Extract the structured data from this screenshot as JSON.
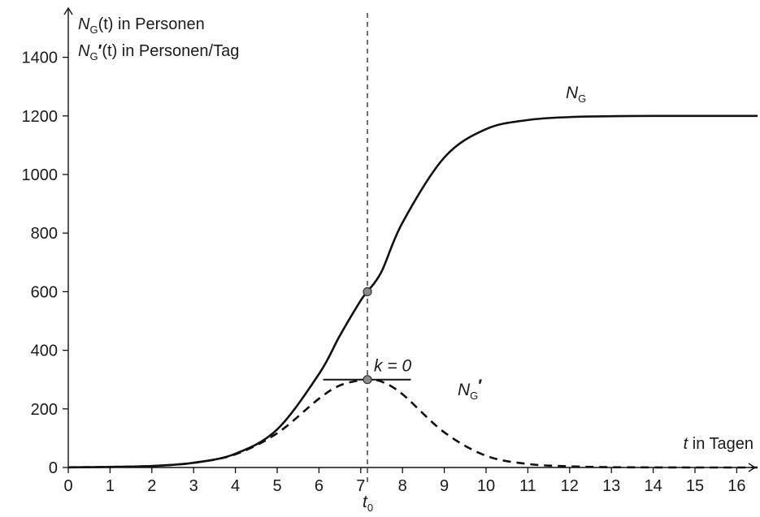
{
  "chart_data": {
    "type": "line",
    "x_ticks": [
      0,
      1,
      2,
      3,
      4,
      5,
      6,
      7,
      8,
      9,
      10,
      11,
      12,
      13,
      14,
      15,
      16
    ],
    "y_ticks": [
      0,
      200,
      400,
      600,
      800,
      1000,
      1200,
      1400
    ],
    "y_tick_labels": [
      "0",
      "200",
      "400",
      "600",
      "800",
      "1000",
      "1200",
      "1400"
    ],
    "xlim": [
      0,
      16.5
    ],
    "ylim": [
      0,
      1400
    ],
    "ylabel_line1": {
      "base": "N",
      "sub": "G",
      "rest": "(t) in Personen"
    },
    "ylabel_line2": {
      "base": "N",
      "sub": "G",
      "prime": "′",
      "rest": "(t) in Personen/Tag"
    },
    "xlabel": {
      "var": "t",
      "rest": " in Tagen"
    },
    "grid": false,
    "series": [
      {
        "label": {
          "base": "N",
          "sub": "G"
        },
        "style": "solid",
        "x": [
          0,
          1,
          2,
          3,
          4,
          5,
          6,
          6.5,
          7,
          7.16,
          7.5,
          8,
          9,
          10,
          11,
          12,
          13,
          14,
          15,
          16,
          16.5
        ],
        "y": [
          0.5,
          2,
          5,
          16,
          47,
          130,
          319,
          450,
          570,
          600,
          669,
          836,
          1058,
          1155,
          1186,
          1196,
          1199,
          1200,
          1200,
          1200,
          1200
        ]
      },
      {
        "label": {
          "base": "N",
          "sub": "G",
          "prime": "′"
        },
        "style": "dashed",
        "x": [
          0,
          1,
          2,
          3,
          4,
          5,
          6,
          6.5,
          7,
          7.16,
          7.5,
          8,
          9,
          10,
          11,
          12,
          13,
          14,
          15,
          16,
          16.5
        ],
        "y": [
          0.5,
          2,
          5,
          16,
          45,
          117,
          235,
          280,
          298,
          300,
          293,
          250,
          120,
          40,
          12,
          4,
          1,
          0.3,
          0,
          0,
          0
        ]
      }
    ],
    "annotations": {
      "vline_x": 7.16,
      "vline_label": {
        "base": "t",
        "sub": "0"
      },
      "inflection_point": {
        "x": 7.16,
        "y": 600
      },
      "max_point": {
        "x": 7.16,
        "y": 300
      },
      "tangent": {
        "x_from": 6.1,
        "x_to": 8.2,
        "y": 300
      },
      "tangent_label": "k = 0"
    }
  },
  "colors": {
    "curve": "#111111",
    "point_fill": "#8c8c8c",
    "axis": "#111111"
  }
}
